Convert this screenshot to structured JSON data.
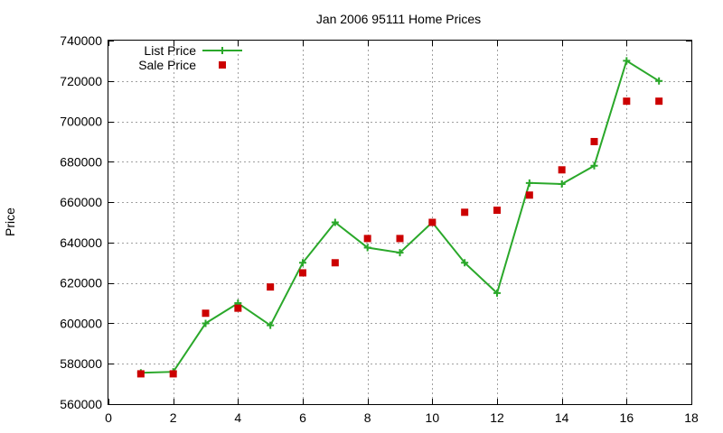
{
  "chart_data": {
    "type": "line",
    "title": "Jan 2006 95111 Home Prices",
    "xlabel": "",
    "ylabel": "Price",
    "xlim": [
      0,
      18
    ],
    "ylim": [
      560000,
      740000
    ],
    "x_ticks": [
      "0",
      "2",
      "4",
      "6",
      "8",
      "10",
      "12",
      "14",
      "16",
      "18"
    ],
    "y_ticks": [
      "560000",
      "580000",
      "600000",
      "620000",
      "640000",
      "660000",
      "680000",
      "700000",
      "720000",
      "740000"
    ],
    "grid": true,
    "legend_position": "top-left",
    "series": [
      {
        "name": "List Price",
        "style": "line-with-plus-markers",
        "color": "#2aa82a",
        "x": [
          1,
          2,
          3,
          4,
          5,
          6,
          7,
          8,
          9,
          10,
          11,
          12,
          13,
          14,
          15,
          16,
          17
        ],
        "values": [
          575500,
          576000,
          600000,
          610000,
          599000,
          630000,
          650000,
          637500,
          635000,
          650000,
          630000,
          615000,
          669500,
          669000,
          678000,
          730000,
          720000
        ]
      },
      {
        "name": "Sale Price",
        "style": "square-markers",
        "color": "#cc0000",
        "x": [
          1,
          2,
          3,
          4,
          5,
          6,
          7,
          8,
          9,
          10,
          11,
          12,
          13,
          14,
          15,
          16,
          17
        ],
        "values": [
          575000,
          575000,
          605000,
          607500,
          618000,
          625000,
          630000,
          642000,
          642000,
          650000,
          655000,
          656000,
          663500,
          676000,
          690000,
          710000,
          710000
        ]
      }
    ]
  }
}
